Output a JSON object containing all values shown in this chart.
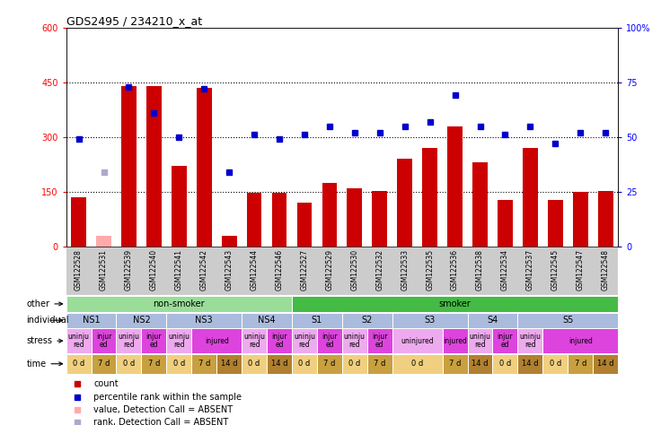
{
  "title": "GDS2495 / 234210_x_at",
  "samples": [
    "GSM122528",
    "GSM122531",
    "GSM122539",
    "GSM122540",
    "GSM122541",
    "GSM122542",
    "GSM122543",
    "GSM122544",
    "GSM122546",
    "GSM122527",
    "GSM122529",
    "GSM122530",
    "GSM122532",
    "GSM122533",
    "GSM122535",
    "GSM122536",
    "GSM122538",
    "GSM122534",
    "GSM122537",
    "GSM122545",
    "GSM122547",
    "GSM122548"
  ],
  "bar_values": [
    135,
    30,
    440,
    440,
    220,
    435,
    30,
    148,
    148,
    120,
    175,
    160,
    152,
    240,
    270,
    330,
    230,
    127,
    270,
    127,
    150,
    152
  ],
  "bar_absent": [
    false,
    true,
    false,
    false,
    false,
    false,
    false,
    false,
    false,
    false,
    false,
    false,
    false,
    false,
    false,
    false,
    false,
    false,
    false,
    false,
    false,
    false
  ],
  "dot_values_pct": [
    49,
    34,
    73,
    61,
    50,
    72,
    34,
    51,
    49,
    51,
    55,
    52,
    52,
    55,
    57,
    69,
    55,
    51,
    55,
    47,
    52,
    52
  ],
  "dot_absent": [
    false,
    true,
    false,
    false,
    false,
    false,
    false,
    false,
    false,
    false,
    false,
    false,
    false,
    false,
    false,
    false,
    false,
    false,
    false,
    false,
    false,
    false
  ],
  "ylim_left": [
    0,
    600
  ],
  "ylim_right": [
    0,
    100
  ],
  "yticks_left": [
    0,
    150,
    300,
    450,
    600
  ],
  "yticks_right": [
    0,
    25,
    50,
    75,
    100
  ],
  "ytick_labels_left": [
    "0",
    "150",
    "300",
    "450",
    "600"
  ],
  "ytick_labels_right": [
    "0",
    "25",
    "50",
    "75",
    "100%"
  ],
  "hlines": [
    150,
    300,
    450
  ],
  "bar_color": "#cc0000",
  "bar_absent_color": "#ffaaaa",
  "dot_color": "#0000cc",
  "dot_absent_color": "#aaaacc",
  "other_row": {
    "groups": [
      {
        "label": "non-smoker",
        "start": 0,
        "end": 9,
        "color": "#99dd99"
      },
      {
        "label": "smoker",
        "start": 9,
        "end": 22,
        "color": "#44bb44"
      }
    ]
  },
  "individual_row": {
    "groups": [
      {
        "label": "NS1",
        "start": 0,
        "end": 2,
        "color": "#aabbdd"
      },
      {
        "label": "NS2",
        "start": 2,
        "end": 4,
        "color": "#aabbdd"
      },
      {
        "label": "NS3",
        "start": 4,
        "end": 7,
        "color": "#aabbdd"
      },
      {
        "label": "NS4",
        "start": 7,
        "end": 9,
        "color": "#aabbdd"
      },
      {
        "label": "S1",
        "start": 9,
        "end": 11,
        "color": "#aabbdd"
      },
      {
        "label": "S2",
        "start": 11,
        "end": 13,
        "color": "#aabbdd"
      },
      {
        "label": "S3",
        "start": 13,
        "end": 16,
        "color": "#aabbdd"
      },
      {
        "label": "S4",
        "start": 16,
        "end": 18,
        "color": "#aabbdd"
      },
      {
        "label": "S5",
        "start": 18,
        "end": 22,
        "color": "#aabbdd"
      }
    ]
  },
  "stress_row": {
    "spans": [
      {
        "label": "uninju\nred",
        "start": 0,
        "end": 1,
        "color": "#eeaaee"
      },
      {
        "label": "injur\ned",
        "start": 1,
        "end": 2,
        "color": "#dd44dd"
      },
      {
        "label": "uninju\nred",
        "start": 2,
        "end": 3,
        "color": "#eeaaee"
      },
      {
        "label": "injur\ned",
        "start": 3,
        "end": 4,
        "color": "#dd44dd"
      },
      {
        "label": "uninju\nred",
        "start": 4,
        "end": 5,
        "color": "#eeaaee"
      },
      {
        "label": "injured",
        "start": 5,
        "end": 7,
        "color": "#dd44dd"
      },
      {
        "label": "uninju\nred",
        "start": 7,
        "end": 8,
        "color": "#eeaaee"
      },
      {
        "label": "injur\ned",
        "start": 8,
        "end": 9,
        "color": "#dd44dd"
      },
      {
        "label": "uninju\nred",
        "start": 9,
        "end": 10,
        "color": "#eeaaee"
      },
      {
        "label": "injur\ned",
        "start": 10,
        "end": 11,
        "color": "#dd44dd"
      },
      {
        "label": "uninju\nred",
        "start": 11,
        "end": 12,
        "color": "#eeaaee"
      },
      {
        "label": "injur\ned",
        "start": 12,
        "end": 13,
        "color": "#dd44dd"
      },
      {
        "label": "uninjured",
        "start": 13,
        "end": 15,
        "color": "#eeaaee"
      },
      {
        "label": "injured",
        "start": 15,
        "end": 16,
        "color": "#dd44dd"
      },
      {
        "label": "uninju\nred",
        "start": 16,
        "end": 17,
        "color": "#eeaaee"
      },
      {
        "label": "injur\ned",
        "start": 17,
        "end": 18,
        "color": "#dd44dd"
      },
      {
        "label": "uninju\nred",
        "start": 18,
        "end": 19,
        "color": "#eeaaee"
      },
      {
        "label": "injured",
        "start": 19,
        "end": 22,
        "color": "#dd44dd"
      }
    ]
  },
  "time_row": {
    "spans": [
      {
        "label": "0 d",
        "start": 0,
        "end": 1,
        "color": "#f0d080"
      },
      {
        "label": "7 d",
        "start": 1,
        "end": 2,
        "color": "#c8a040"
      },
      {
        "label": "0 d",
        "start": 2,
        "end": 3,
        "color": "#f0d080"
      },
      {
        "label": "7 d",
        "start": 3,
        "end": 4,
        "color": "#c8a040"
      },
      {
        "label": "0 d",
        "start": 4,
        "end": 5,
        "color": "#f0d080"
      },
      {
        "label": "7 d",
        "start": 5,
        "end": 6,
        "color": "#c8a040"
      },
      {
        "label": "14 d",
        "start": 6,
        "end": 7,
        "color": "#b08030"
      },
      {
        "label": "0 d",
        "start": 7,
        "end": 8,
        "color": "#f0d080"
      },
      {
        "label": "14 d",
        "start": 8,
        "end": 9,
        "color": "#b08030"
      },
      {
        "label": "0 d",
        "start": 9,
        "end": 10,
        "color": "#f0d080"
      },
      {
        "label": "7 d",
        "start": 10,
        "end": 11,
        "color": "#c8a040"
      },
      {
        "label": "0 d",
        "start": 11,
        "end": 12,
        "color": "#f0d080"
      },
      {
        "label": "7 d",
        "start": 12,
        "end": 13,
        "color": "#c8a040"
      },
      {
        "label": "0 d",
        "start": 13,
        "end": 15,
        "color": "#f0d080"
      },
      {
        "label": "7 d",
        "start": 15,
        "end": 16,
        "color": "#c8a040"
      },
      {
        "label": "14 d",
        "start": 16,
        "end": 17,
        "color": "#b08030"
      },
      {
        "label": "0 d",
        "start": 17,
        "end": 18,
        "color": "#f0d080"
      },
      {
        "label": "14 d",
        "start": 18,
        "end": 19,
        "color": "#b08030"
      },
      {
        "label": "0 d",
        "start": 19,
        "end": 20,
        "color": "#f0d080"
      },
      {
        "label": "7 d",
        "start": 20,
        "end": 21,
        "color": "#c8a040"
      },
      {
        "label": "14 d",
        "start": 21,
        "end": 22,
        "color": "#b08030"
      }
    ]
  },
  "legend": [
    {
      "label": "count",
      "color": "#cc0000"
    },
    {
      "label": "percentile rank within the sample",
      "color": "#0000cc"
    },
    {
      "label": "value, Detection Call = ABSENT",
      "color": "#ffaaaa"
    },
    {
      "label": "rank, Detection Call = ABSENT",
      "color": "#aaaacc"
    }
  ]
}
